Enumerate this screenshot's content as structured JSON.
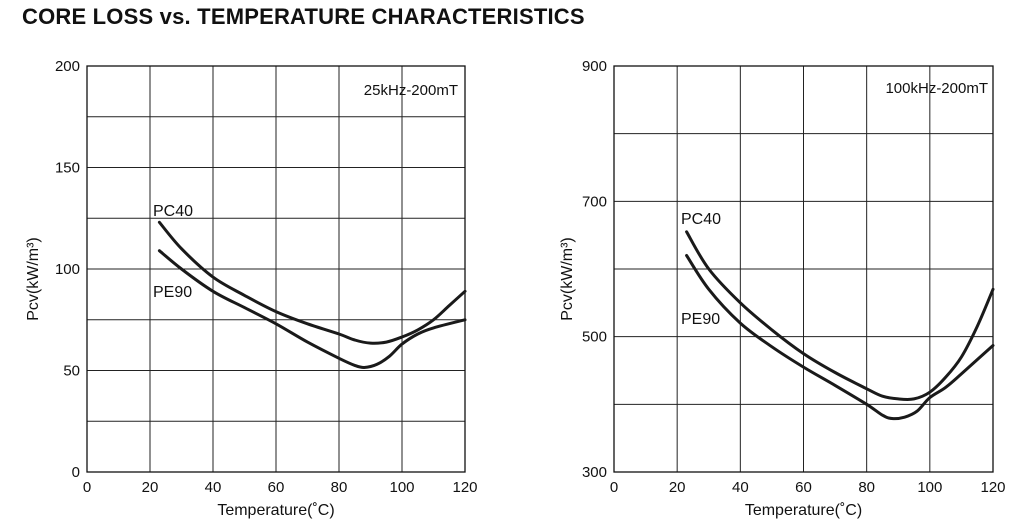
{
  "title": "CORE LOSS vs. TEMPERATURE CHARACTERISTICS",
  "chart_data": [
    {
      "type": "line",
      "condition": "25kHz-200mT",
      "xlabel": "Temperature(˚C)",
      "ylabel": "Pcv(kW/m³)",
      "xlim": [
        0,
        120
      ],
      "ylim": [
        0,
        200
      ],
      "xticks": [
        0,
        20,
        40,
        60,
        80,
        100,
        120
      ],
      "yticks": [
        0,
        50,
        100,
        150,
        200
      ],
      "ygrid": [
        0,
        25,
        50,
        75,
        100,
        125,
        150,
        175,
        200
      ],
      "grid": true,
      "series": [
        {
          "name": "PC40",
          "x": [
            23,
            30,
            40,
            50,
            60,
            70,
            80,
            85,
            90,
            95,
            100,
            105,
            110,
            115,
            120
          ],
          "y": [
            123,
            110,
            96,
            87,
            79,
            73,
            68,
            65,
            63.5,
            64,
            66.5,
            70,
            75,
            82,
            89
          ]
        },
        {
          "name": "PE90",
          "x": [
            23,
            30,
            40,
            50,
            60,
            70,
            80,
            85,
            88,
            92,
            96,
            100,
            105,
            110,
            120
          ],
          "y": [
            109,
            100,
            89,
            81,
            73,
            64,
            56,
            52.5,
            51.5,
            53,
            57,
            63,
            68,
            71,
            75
          ]
        }
      ]
    },
    {
      "type": "line",
      "condition": "100kHz-200mT",
      "xlabel": "Temperature(˚C)",
      "ylabel": "Pcv(kW/m³)",
      "xlim": [
        0,
        120
      ],
      "ylim": [
        300,
        900
      ],
      "xticks": [
        0,
        20,
        40,
        60,
        80,
        100,
        120
      ],
      "yticks": [
        300,
        500,
        700,
        900
      ],
      "ygrid": [
        300,
        400,
        500,
        600,
        700,
        800,
        900
      ],
      "grid": true,
      "series": [
        {
          "name": "PC40",
          "x": [
            23,
            30,
            40,
            50,
            60,
            70,
            80,
            85,
            90,
            95,
            100,
            105,
            110,
            115,
            120
          ],
          "y": [
            655,
            600,
            550,
            510,
            475,
            447,
            423,
            412,
            408,
            408,
            418,
            440,
            470,
            515,
            570
          ]
        },
        {
          "name": "PE90",
          "x": [
            23,
            30,
            40,
            50,
            60,
            70,
            80,
            85,
            88,
            92,
            96,
            100,
            105,
            110,
            120
          ],
          "y": [
            620,
            570,
            520,
            485,
            455,
            428,
            400,
            384,
            379,
            381,
            390,
            410,
            425,
            445,
            487
          ]
        }
      ]
    }
  ]
}
